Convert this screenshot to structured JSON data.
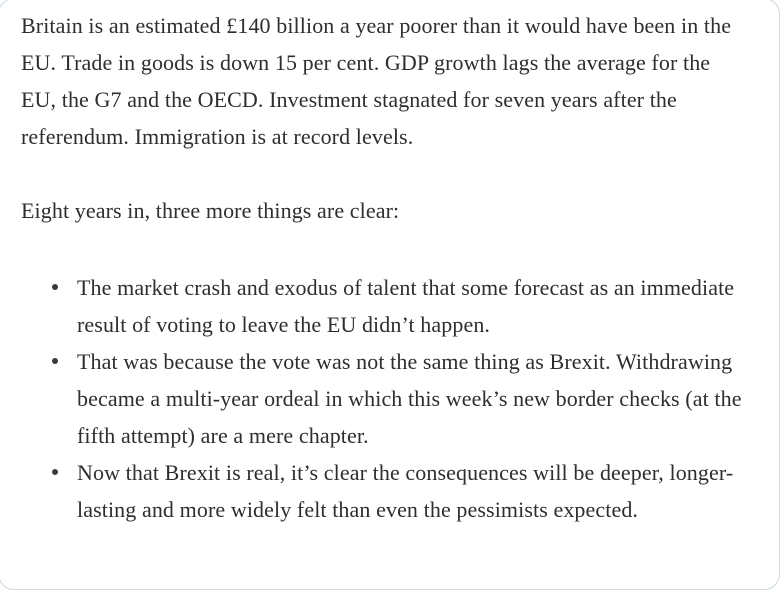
{
  "colors": {
    "text": "#2e2e2e",
    "card_border": "#ccd8e0",
    "background": "#ffffff"
  },
  "article": {
    "paragraph_intro": "Britain is an estimated £140 billion a year poorer than it would have been in the EU. Trade in goods is down 15 per cent. GDP growth lags the average for the EU, the G7 and the OECD. Investment stagnated for seven years after the referendum. Immigration is at record levels.",
    "paragraph_lead_in": "Eight years in, three more things are clear:",
    "bullets": [
      "The market crash and exodus of talent that some forecast as an immediate result of voting to leave the EU didn’t happen.",
      "That was because the vote was not the same thing as Brexit. Withdrawing became a multi-year ordeal in which this week’s new border checks (at the fifth attempt) are a mere chapter.",
      "Now that Brexit is real, it’s clear the consequences will be deeper, longer-lasting and more widely felt than even the pessimists expected."
    ]
  }
}
